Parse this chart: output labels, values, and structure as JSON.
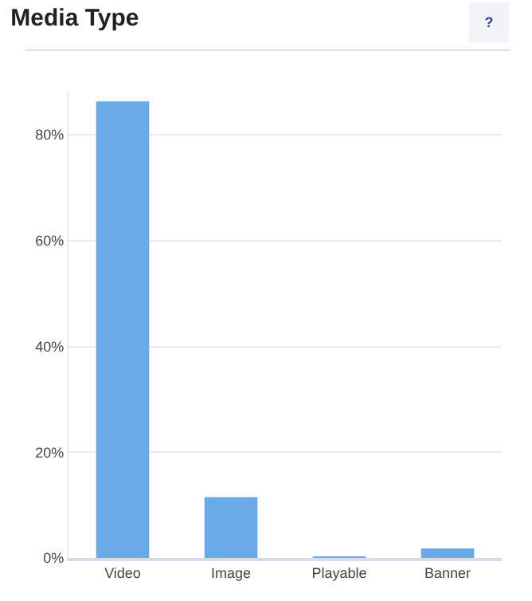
{
  "chart_data": {
    "type": "bar",
    "title": "Media Type",
    "annotations": [
      "?"
    ],
    "categories": [
      "Video",
      "Image",
      "Playable",
      "Banner"
    ],
    "values": [
      86.3,
      11.5,
      0.3,
      1.8
    ],
    "color": "#6aabe7",
    "ylim": [
      0,
      88
    ],
    "yticks": [
      {
        "value": 0,
        "label": "0%"
      },
      {
        "value": 20,
        "label": "20%"
      },
      {
        "value": 40,
        "label": "40%"
      },
      {
        "value": 60,
        "label": "60%"
      },
      {
        "value": 80,
        "label": "80%"
      }
    ],
    "grid": "y"
  }
}
